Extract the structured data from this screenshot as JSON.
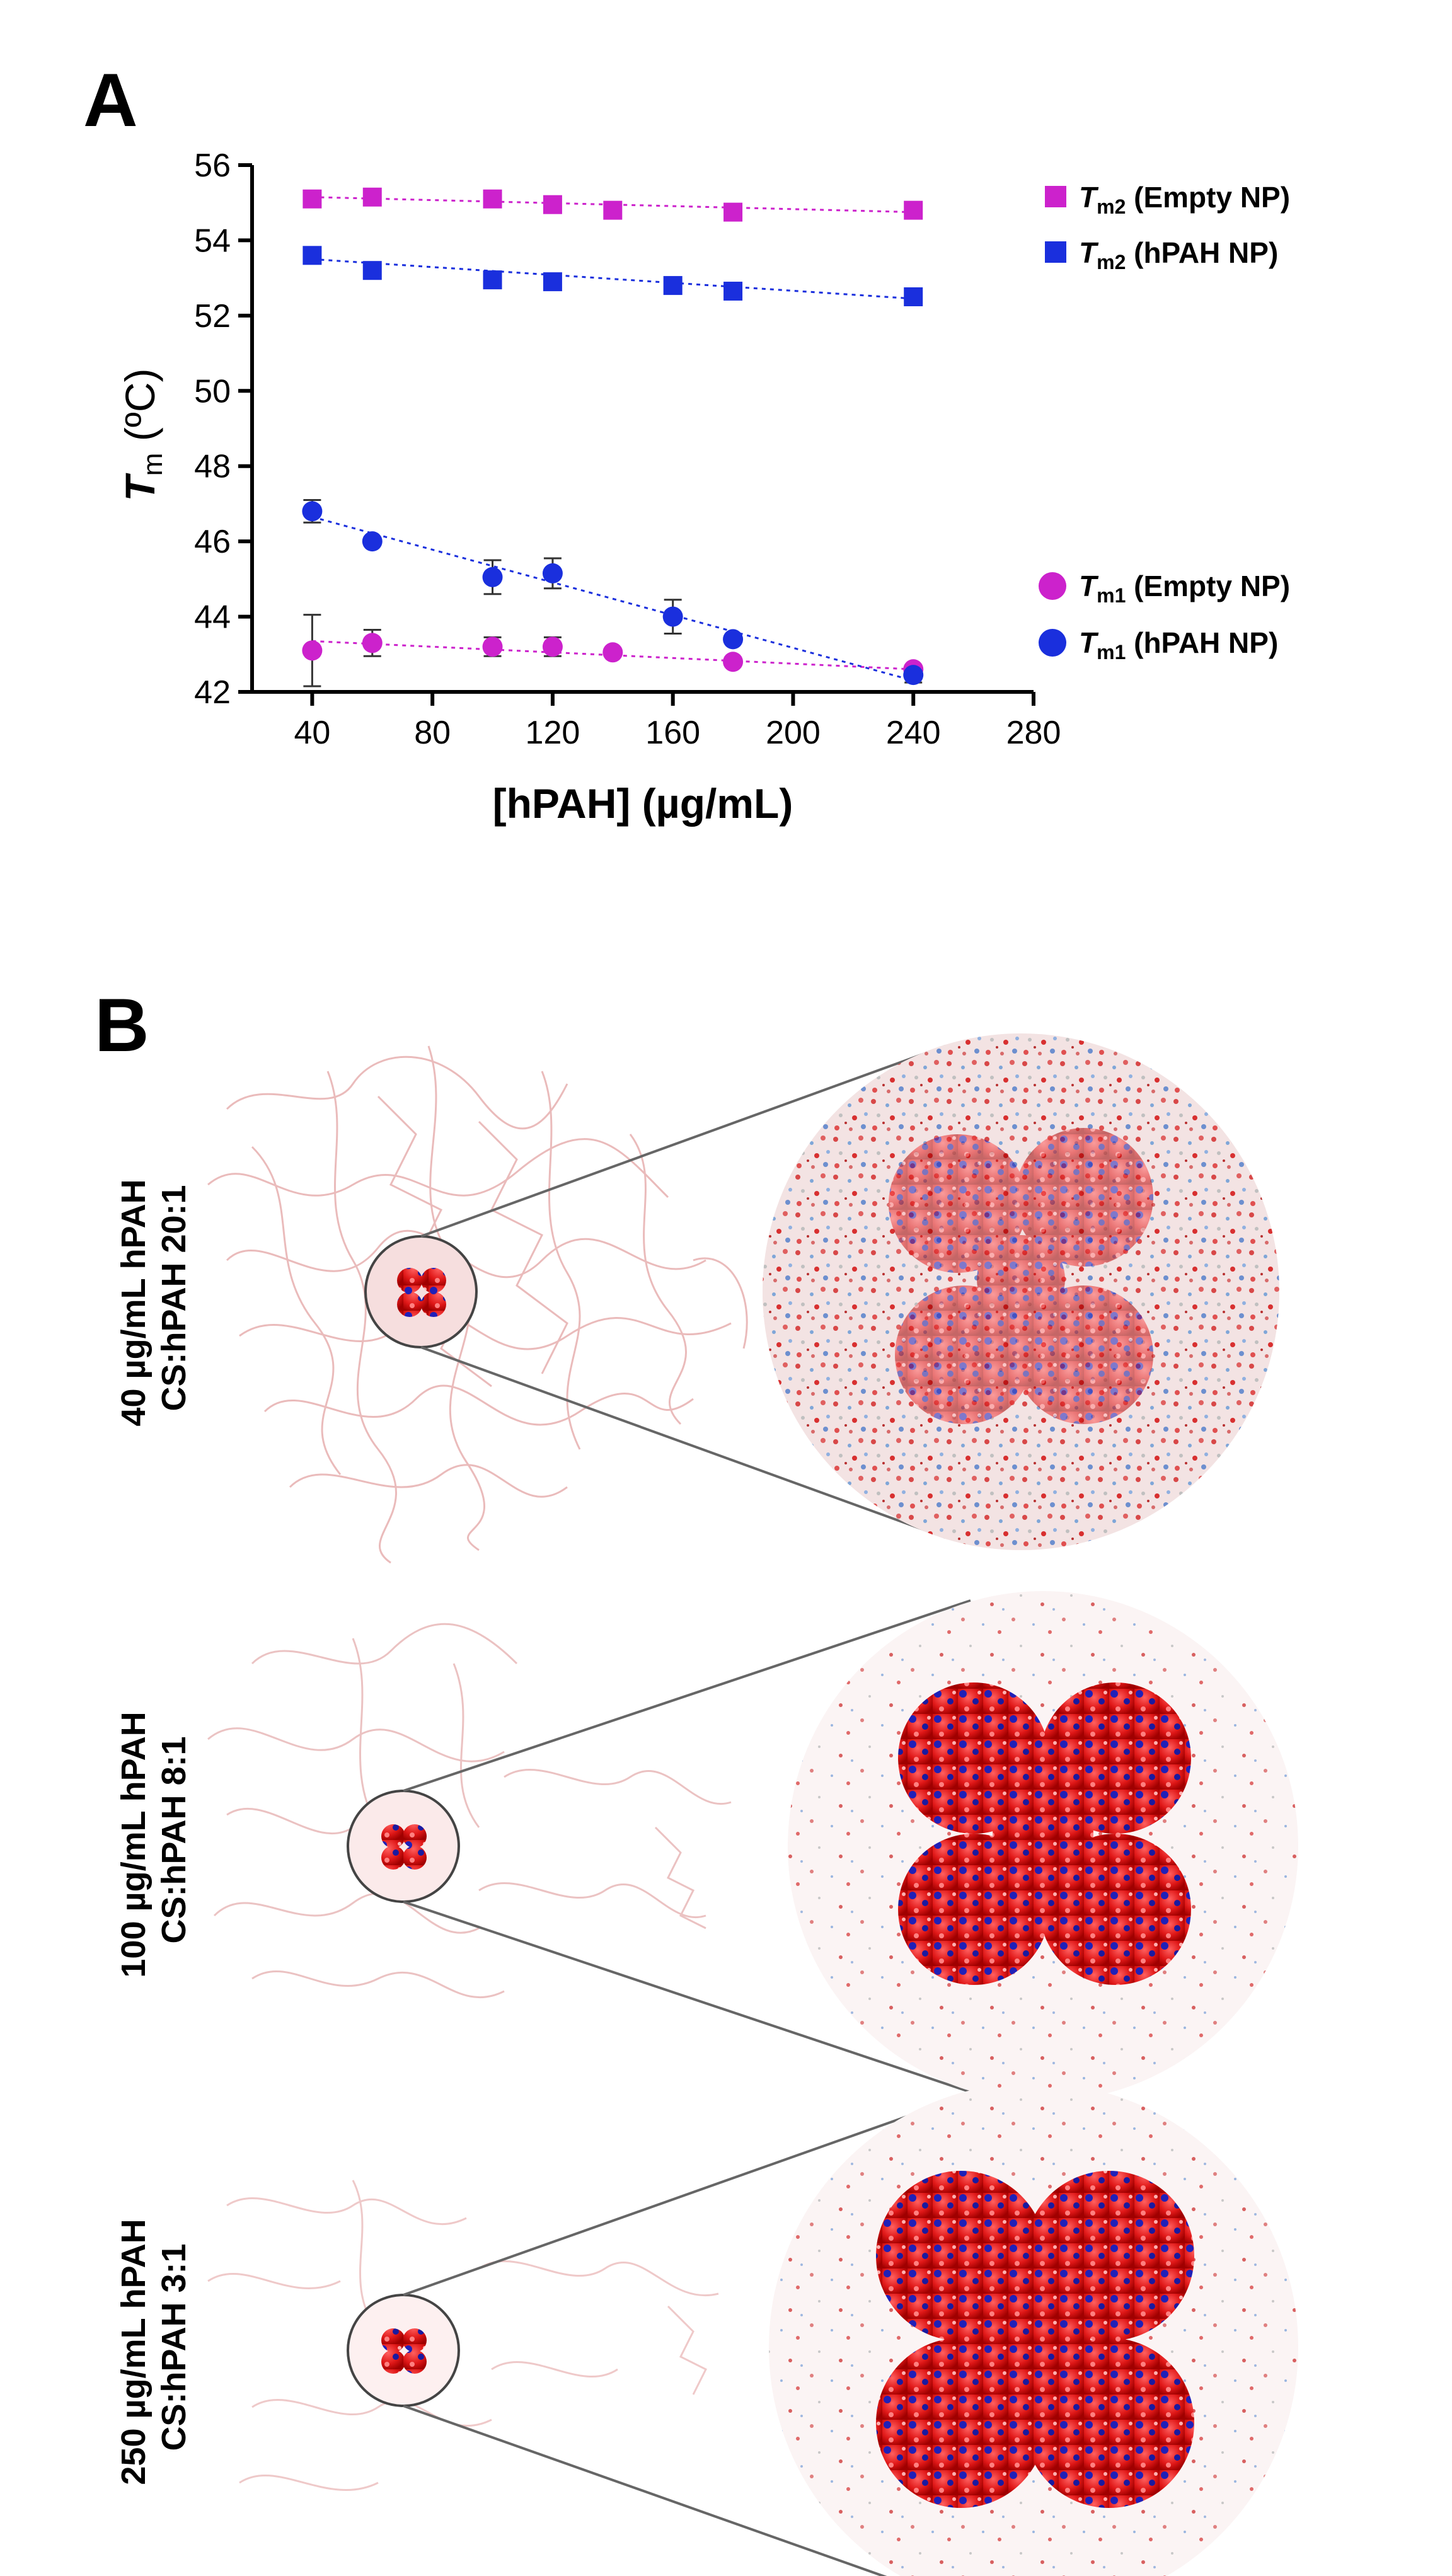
{
  "panels": {
    "a_label": "A",
    "b_label": "B"
  },
  "chart_data": {
    "type": "scatter",
    "xlabel": "[hPAH] (µg/mL)",
    "ylabel": "T",
    "ylabel_sub": "m",
    "ylabel_unit": " (ºC)",
    "xlim": [
      20,
      280
    ],
    "ylim": [
      42,
      56
    ],
    "xticks": [
      40,
      80,
      120,
      160,
      200,
      240,
      280
    ],
    "xtick_labels": [
      "40",
      "80",
      "120",
      "160",
      "200",
      "240",
      "280"
    ],
    "yticks": [
      42,
      44,
      46,
      48,
      50,
      52,
      54,
      56
    ],
    "ytick_labels": [
      "42",
      "44",
      "46",
      "48",
      "50",
      "52",
      "54",
      "56"
    ],
    "grid": false,
    "legend_position": "right",
    "series": [
      {
        "name": "Tm2 (Empty NP)",
        "legend_symbol": "T",
        "legend_sub": "m2",
        "legend_rest": " (Empty NP)",
        "marker": "square",
        "color": "#cc22cc",
        "x": [
          40,
          60,
          100,
          120,
          140,
          180,
          240
        ],
        "y": [
          55.1,
          55.15,
          55.1,
          54.95,
          54.8,
          54.75,
          54.8
        ],
        "trend": [
          55.15,
          54.75
        ]
      },
      {
        "name": "Tm2 (hPAH NP)",
        "legend_symbol": "T",
        "legend_sub": "m2",
        "legend_rest": " (hPAH NP)",
        "marker": "square",
        "color": "#1a2fdd",
        "x": [
          40,
          60,
          100,
          120,
          160,
          180,
          240
        ],
        "y": [
          53.6,
          53.2,
          52.95,
          52.9,
          52.8,
          52.65,
          52.5
        ],
        "trend": [
          53.5,
          52.45
        ]
      },
      {
        "name": "Tm1 (Empty NP)",
        "legend_symbol": "T",
        "legend_sub": "m1",
        "legend_rest": " (Empty NP)",
        "marker": "circle",
        "color": "#cc22cc",
        "x": [
          40,
          60,
          100,
          120,
          140,
          180,
          240
        ],
        "y": [
          43.1,
          43.3,
          43.2,
          43.2,
          43.05,
          42.8,
          42.6
        ],
        "err": [
          0.95,
          0.35,
          0.25,
          0.25,
          0,
          0,
          0
        ],
        "trend": [
          43.35,
          42.6
        ]
      },
      {
        "name": "Tm1 (hPAH NP)",
        "legend_symbol": "T",
        "legend_sub": "m1",
        "legend_rest": " (hPAH NP)",
        "marker": "circle",
        "color": "#1a2fdd",
        "x": [
          40,
          60,
          100,
          120,
          160,
          180,
          240
        ],
        "y": [
          46.8,
          46.0,
          45.05,
          45.15,
          44.0,
          43.4,
          42.45
        ],
        "err": [
          0.3,
          0,
          0.45,
          0.4,
          0.45,
          0,
          0.2
        ],
        "trend": [
          46.65,
          42.3
        ]
      }
    ]
  },
  "panel_b": {
    "rows": [
      {
        "line1": "40 µg/mL hPAH",
        "line2": "CS:hPAH 20:1"
      },
      {
        "line1": "100 µg/mL hPAH",
        "line2": "CS:hPAH 8:1"
      },
      {
        "line1": "250 µg/mL hPAH",
        "line2": "CS:hPAH 3:1"
      }
    ]
  }
}
